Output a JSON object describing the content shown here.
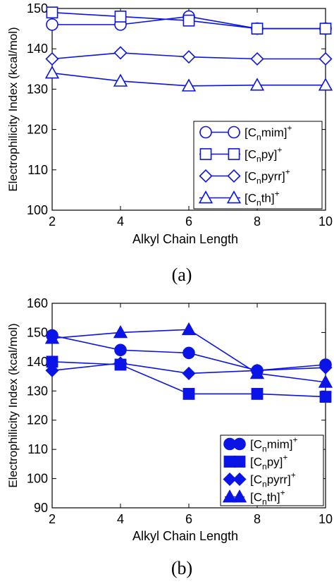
{
  "chart_data": [
    {
      "type": "line",
      "panel_label": "(a)",
      "xlabel": "Alkyl Chain Length",
      "ylabel": "Electrophilicity Index (kcal/mol)",
      "xlim": [
        2,
        10
      ],
      "ylim": [
        100,
        150
      ],
      "x_ticks": [
        "2",
        "4",
        "6",
        "8",
        "10"
      ],
      "y_ticks": [
        "100",
        "110",
        "120",
        "130",
        "140",
        "150"
      ],
      "marker_fill": "open",
      "x": [
        2,
        4,
        6,
        8,
        10
      ],
      "series": [
        {
          "name": "[Cnmim]+",
          "base": "[C",
          "sub": "n",
          "rest": "mim]",
          "sup": "+",
          "marker": "circle",
          "values": [
            146,
            146,
            148,
            145,
            145
          ]
        },
        {
          "name": "[Cnpy]+",
          "base": "[C",
          "sub": "n",
          "rest": "py]",
          "sup": "+",
          "marker": "square",
          "values": [
            149,
            148,
            147,
            145,
            145
          ]
        },
        {
          "name": "[Cnpyrr]+",
          "base": "[C",
          "sub": "n",
          "rest": "pyrr]",
          "sup": "+",
          "marker": "diamond",
          "values": [
            137.5,
            139,
            138,
            137.5,
            137.5
          ]
        },
        {
          "name": "[Cnth]+",
          "base": "[C",
          "sub": "n",
          "rest": "th]",
          "sup": "+",
          "marker": "triangle",
          "values": [
            134,
            132,
            130.8,
            131,
            131
          ]
        }
      ]
    },
    {
      "type": "line",
      "panel_label": "(b)",
      "xlabel": "Alkyl Chain Length",
      "ylabel": "Electrophilicity Index (kcal/mol)",
      "xlim": [
        2,
        10
      ],
      "ylim": [
        90,
        160
      ],
      "x_ticks": [
        "2",
        "4",
        "6",
        "8",
        "10"
      ],
      "y_ticks": [
        "90",
        "100",
        "110",
        "120",
        "130",
        "140",
        "150",
        "160"
      ],
      "marker_fill": "filled",
      "x": [
        2,
        4,
        6,
        8,
        10
      ],
      "series": [
        {
          "name": "[Cnmim]+",
          "base": "[C",
          "sub": "n",
          "rest": "mim]",
          "sup": "+",
          "marker": "circle",
          "values": [
            149,
            144,
            143,
            137,
            139
          ]
        },
        {
          "name": "[Cnpy]+",
          "base": "[C",
          "sub": "n",
          "rest": "py]",
          "sup": "+",
          "marker": "square",
          "values": [
            140,
            139,
            129,
            129,
            128
          ]
        },
        {
          "name": "[Cnpyrr]+",
          "base": "[C",
          "sub": "n",
          "rest": "pyrr]",
          "sup": "+",
          "marker": "diamond",
          "values": [
            137,
            139.5,
            136,
            137,
            138
          ]
        },
        {
          "name": "[Cnth]+",
          "base": "[C",
          "sub": "n",
          "rest": "th]",
          "sup": "+",
          "marker": "triangle",
          "values": [
            148,
            150,
            151,
            136,
            133
          ]
        }
      ]
    }
  ],
  "style": {
    "series_color": "#0a14e6",
    "axis_color": "#000000",
    "background": "#ffffff"
  },
  "legend_position": "bottom-right"
}
